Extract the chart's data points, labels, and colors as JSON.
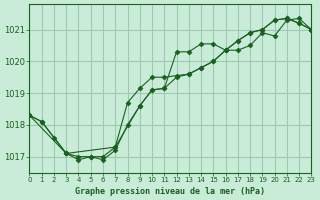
{
  "title": "Graphe pression niveau de la mer (hPa)",
  "background_color": "#c8ecd8",
  "grid_color": "#a0c8b0",
  "line_color": "#1a6020",
  "marker_color": "#1a6020",
  "xlim": [
    0,
    23
  ],
  "ylim": [
    1016.5,
    1021.8
  ],
  "yticks": [
    1017,
    1018,
    1019,
    1020,
    1021
  ],
  "xticks": [
    0,
    1,
    2,
    3,
    4,
    5,
    6,
    7,
    8,
    9,
    10,
    11,
    12,
    13,
    14,
    15,
    16,
    17,
    18,
    19,
    20,
    21,
    22,
    23
  ],
  "series1_x": [
    0,
    1,
    3,
    4,
    5,
    6,
    7,
    8,
    9,
    10,
    11,
    12,
    13,
    14,
    15,
    16,
    17,
    18,
    19,
    20,
    21,
    22,
    23
  ],
  "series1_y": [
    1018.3,
    1018.1,
    1017.1,
    1016.9,
    1017.0,
    1016.9,
    1017.2,
    1018.0,
    1018.6,
    1019.1,
    1019.15,
    1020.3,
    1020.3,
    1020.55,
    1020.55,
    1020.35,
    1020.35,
    1020.5,
    1020.9,
    1020.8,
    1021.3,
    1021.35,
    1021.0
  ],
  "series2_x": [
    0,
    1,
    2,
    3,
    4,
    5,
    6,
    7,
    8,
    9,
    10,
    11,
    12,
    13,
    14,
    15,
    16,
    17,
    18,
    19,
    20,
    21,
    22,
    23
  ],
  "series2_y": [
    1018.3,
    1018.1,
    1017.6,
    1017.1,
    1017.0,
    1017.0,
    1017.0,
    1017.3,
    1018.7,
    1019.15,
    1019.5,
    1019.5,
    1019.55,
    1019.6,
    1019.8,
    1020.0,
    1020.35,
    1020.65,
    1020.9,
    1021.0,
    1021.3,
    1021.35,
    1021.2,
    1021.0
  ],
  "series3_x": [
    0,
    3,
    7,
    9,
    10,
    11,
    12,
    13,
    14,
    15,
    16,
    17,
    18,
    19,
    20,
    21,
    22,
    23
  ],
  "series3_y": [
    1018.3,
    1017.1,
    1017.3,
    1018.6,
    1019.1,
    1019.15,
    1019.5,
    1019.6,
    1019.8,
    1020.0,
    1020.35,
    1020.65,
    1020.9,
    1021.0,
    1021.3,
    1021.35,
    1021.2,
    1021.0
  ]
}
